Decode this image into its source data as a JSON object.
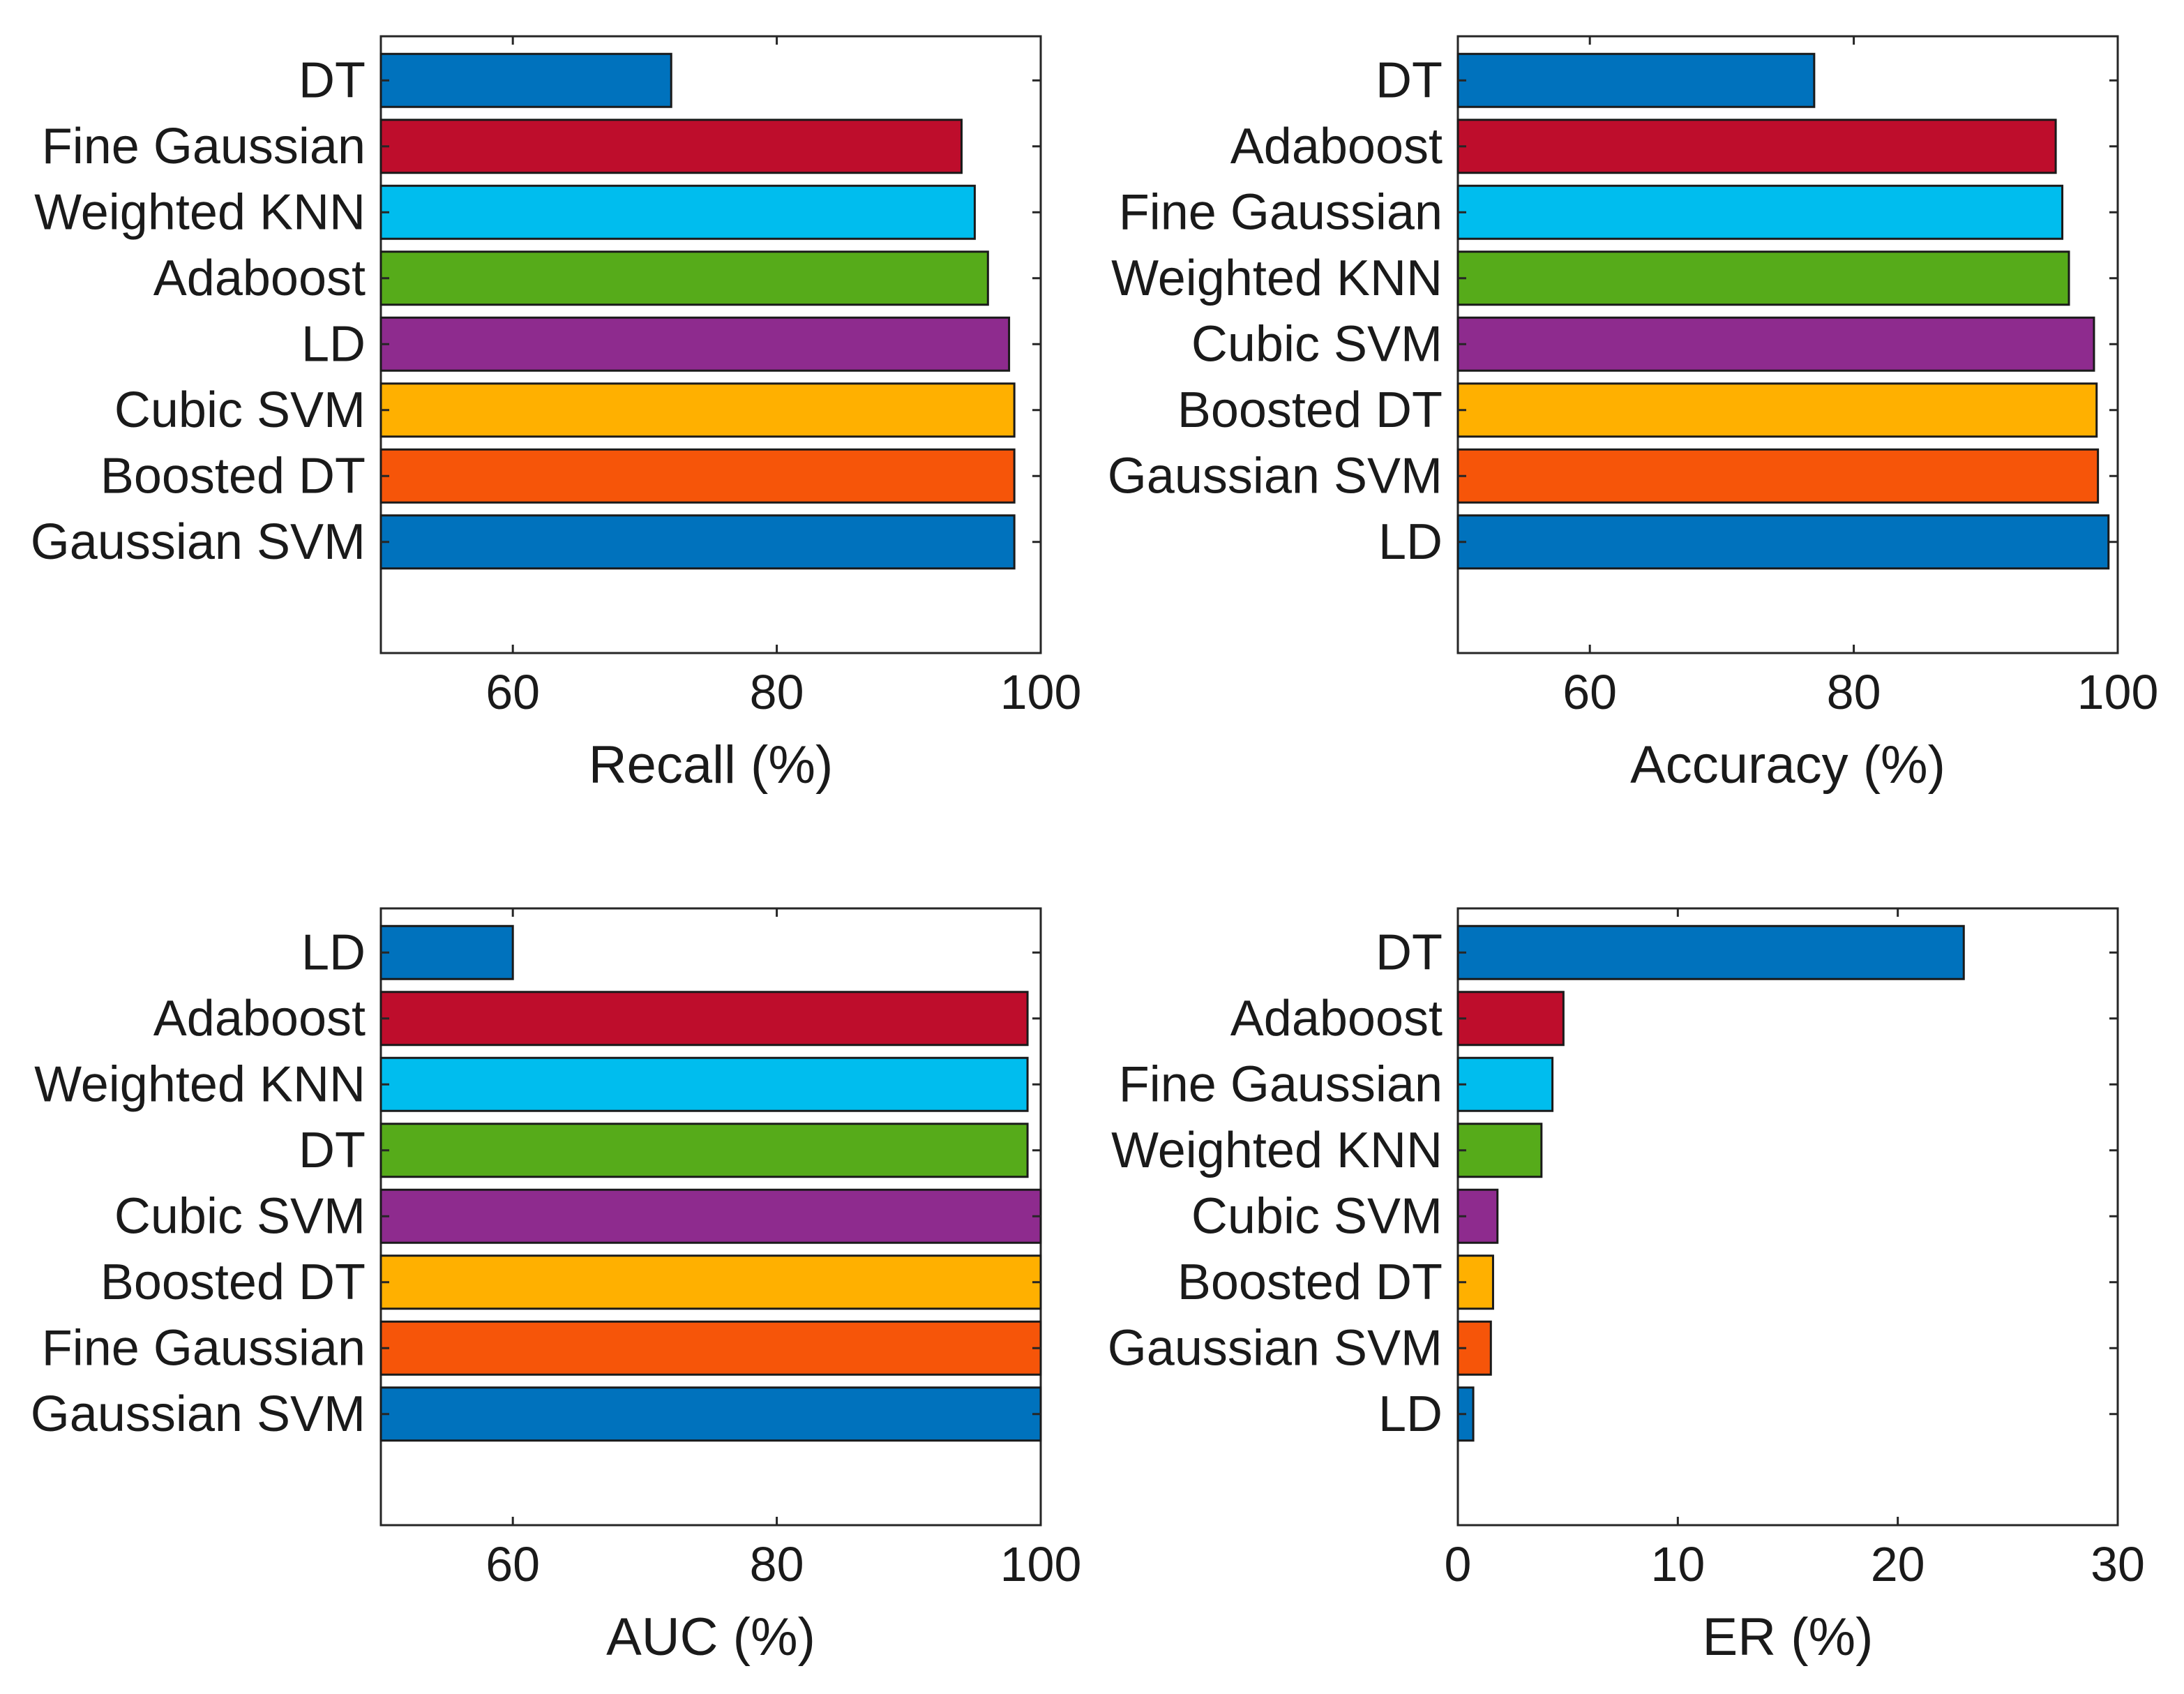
{
  "chart_data": [
    {
      "type": "bar",
      "orientation": "horizontal",
      "xlabel": "Recall (%)",
      "xlim": [
        50,
        100
      ],
      "xticks": [
        "60",
        "80",
        "100"
      ],
      "categories": [
        "DT",
        "Fine Gaussian",
        "Weighted KNN",
        "Adaboost",
        "LD",
        "Cubic SVM",
        "Boosted DT",
        "Gaussian SVM"
      ],
      "values": [
        72,
        94,
        95,
        96,
        97.6,
        98,
        98,
        98
      ],
      "colors": [
        "#0072BD",
        "#BE0D2C",
        "#00BDEE",
        "#56AB1A",
        "#8E2B8E",
        "#FFB000",
        "#F65509",
        "#0072BD"
      ]
    },
    {
      "type": "bar",
      "orientation": "horizontal",
      "xlabel": "Accuracy (%)",
      "xlim": [
        50,
        100
      ],
      "xticks": [
        "60",
        "80",
        "100"
      ],
      "categories": [
        "DT",
        "Adaboost",
        "Fine Gaussian",
        "Weighted KNN",
        "Cubic SVM",
        "Boosted DT",
        "Gaussian SVM",
        "LD"
      ],
      "values": [
        77,
        95.3,
        95.8,
        96.3,
        98.2,
        98.4,
        98.5,
        99.3
      ],
      "colors": [
        "#0072BD",
        "#BE0D2C",
        "#00BDEE",
        "#56AB1A",
        "#8E2B8E",
        "#FFB000",
        "#F65509",
        "#0072BD"
      ]
    },
    {
      "type": "bar",
      "orientation": "horizontal",
      "xlabel": "AUC (%)",
      "xlim": [
        50,
        100
      ],
      "xticks": [
        "60",
        "80",
        "100"
      ],
      "categories": [
        "LD",
        "Adaboost",
        "Weighted KNN",
        "DT",
        "Cubic SVM",
        "Boosted DT",
        "Fine Gaussian",
        "Gaussian SVM"
      ],
      "values": [
        60,
        99,
        99,
        99,
        100,
        100,
        100,
        100
      ],
      "colors": [
        "#0072BD",
        "#BE0D2C",
        "#00BDEE",
        "#56AB1A",
        "#8E2B8E",
        "#FFB000",
        "#F65509",
        "#0072BD"
      ]
    },
    {
      "type": "bar",
      "orientation": "horizontal",
      "xlabel": "ER (%)",
      "xlim": [
        0,
        30
      ],
      "xticks": [
        "0",
        "10",
        "20",
        "30"
      ],
      "categories": [
        "DT",
        "Adaboost",
        "Fine Gaussian",
        "Weighted KNN",
        "Cubic SVM",
        "Boosted DT",
        "Gaussian SVM",
        "LD"
      ],
      "values": [
        23,
        4.8,
        4.3,
        3.8,
        1.8,
        1.6,
        1.5,
        0.7
      ],
      "colors": [
        "#0072BD",
        "#BE0D2C",
        "#00BDEE",
        "#56AB1A",
        "#8E2B8E",
        "#FFB000",
        "#F65509",
        "#0072BD"
      ]
    }
  ]
}
